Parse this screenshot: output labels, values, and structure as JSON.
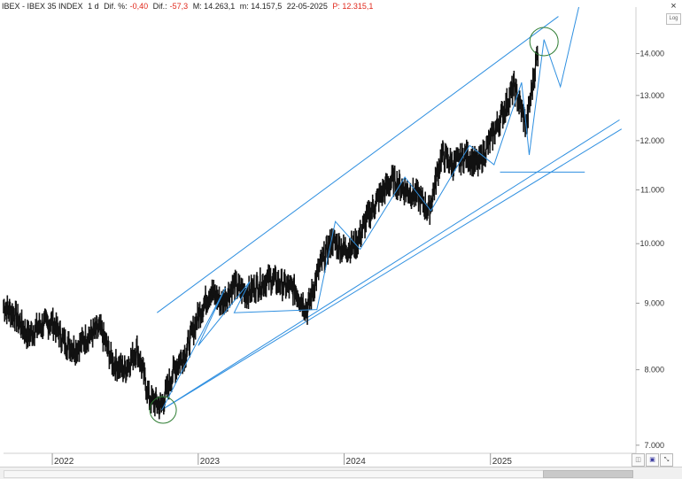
{
  "header": {
    "symbol": "IBEX - IBEX 35 INDEX",
    "period": "1 d",
    "dif_pct_label": "Dif. %:",
    "dif_pct_value": "-0,40",
    "dif_label": "Dif.:",
    "dif_value": "-57,3",
    "high_label": "M: 14.263,1",
    "low_label": "m: 14.157,5",
    "date": "22-05-2025",
    "p_label": "P: 12.315,1"
  },
  "controls": {
    "log_label": "Log",
    "close_label": "×"
  },
  "colors": {
    "price": "#111111",
    "trendline": "#2e8fe0",
    "circle": "#2e7d32",
    "axis_text": "#333333"
  },
  "chart_data": {
    "type": "line",
    "x_ticks": [
      "2022",
      "2023",
      "2024",
      "2025"
    ],
    "y_ticks": [
      "7.000",
      "8.000",
      "9.000",
      "10.000",
      "11.000",
      "12.000",
      "13.000",
      "14.000"
    ],
    "y_tick_values": [
      7000,
      8000,
      9000,
      10000,
      11000,
      12000,
      13000,
      14000
    ],
    "ylim": [
      6900,
      15200
    ],
    "xlim": [
      "2021-09-01",
      "2025-12-31"
    ],
    "log_scale": true,
    "series": [
      {
        "values_x": [
          "2021-09-01",
          "2021-10-01",
          "2021-11-01",
          "2021-12-01",
          "2022-01-01",
          "2022-02-01",
          "2022-03-01",
          "2022-04-01",
          "2022-05-01",
          "2022-06-01",
          "2022-07-01",
          "2022-08-01",
          "2022-09-01",
          "2022-10-01",
          "2022-11-01",
          "2022-12-01",
          "2023-01-01",
          "2023-02-01",
          "2023-03-01",
          "2023-04-01",
          "2023-05-01",
          "2023-06-01",
          "2023-07-01",
          "2023-08-01",
          "2023-09-01",
          "2023-10-01",
          "2023-11-01",
          "2023-12-01",
          "2024-01-01",
          "2024-02-01",
          "2024-03-01",
          "2024-04-01",
          "2024-05-01",
          "2024-06-01",
          "2024-07-01",
          "2024-08-01",
          "2024-09-01",
          "2024-10-01",
          "2024-11-01",
          "2024-12-01",
          "2025-01-01",
          "2025-02-01",
          "2025-03-01",
          "2025-04-01",
          "2025-05-01"
        ],
        "values_y": [
          8950,
          8800,
          8500,
          8650,
          8700,
          8400,
          8300,
          8500,
          8600,
          8100,
          8000,
          8300,
          7600,
          7500,
          8000,
          8250,
          8800,
          9200,
          9000,
          9300,
          9150,
          9300,
          9400,
          9300,
          9200,
          8900,
          9600,
          10050,
          9900,
          10000,
          10500,
          10900,
          11200,
          11000,
          10900,
          10600,
          11700,
          11500,
          11700,
          11500,
          12000,
          12600,
          13200,
          12300,
          14150
        ]
      }
    ],
    "annotations": "trend channel lines and zigzag wave lines; circles marking Oct-2022 low and May-2025 high"
  }
}
